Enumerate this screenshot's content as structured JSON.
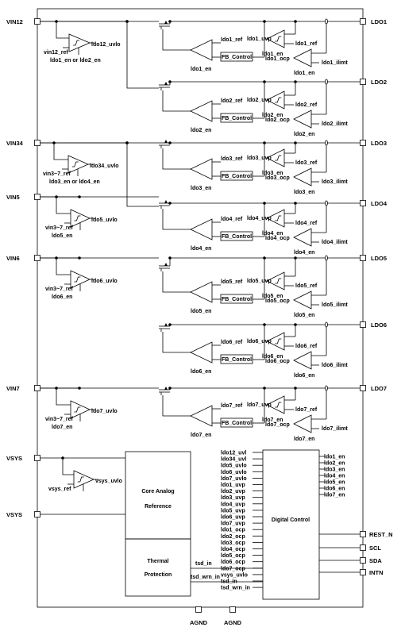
{
  "pins_left": [
    "VIN12",
    "VIN34",
    "VIN5",
    "VIN6",
    "VIN7",
    "VSYS",
    "VSYS"
  ],
  "pins_right": [
    "LDO1",
    "LDO2",
    "LDO3",
    "LDO4",
    "LDO5",
    "LDO6",
    "LDO7"
  ],
  "pins_right_digital": [
    "REST_N",
    "SCL",
    "SDA",
    "INTN"
  ],
  "pins_bottom": [
    "AGND",
    "AGND"
  ],
  "fb_label": "FB_Control",
  "uvlo": [
    {
      "ref": "vin12_ref",
      "out": "ldo12_uvlo",
      "en": "ldo1_en or ldo2_en"
    },
    {
      "ref": "vin3~7_ref",
      "out": "ldo34_uvlo",
      "en": "ldo3_en or ldo4_en"
    },
    {
      "ref": "vin3~7_ref",
      "out": "ldo5_uvlo",
      "en": "ldo5_en"
    },
    {
      "ref": "vin3~7_ref",
      "out": "ldo6_uvlo",
      "en": "ldo6_en"
    },
    {
      "ref": "vin3~7_ref",
      "out": "ldo7_uvlo",
      "en": "ldo7_en"
    },
    {
      "ref": "vsys_ref",
      "out": "vsys_uvlo",
      "en": ""
    }
  ],
  "ldos": [
    {
      "ref": "ldo1_ref",
      "en": "ldo1_en",
      "uvp": "ldo1_uvp",
      "uvp_ref": "ldo1_ref",
      "uvp_en": "ldo1_en",
      "ocp": "ldo1_ocp",
      "ilimit": "ldo1_ilimt",
      "ocp_en": "ldo1_en"
    },
    {
      "ref": "ldo2_ref",
      "en": "ldo2_en",
      "uvp": "ldo2_uvp",
      "uvp_ref": "ldo2_ref",
      "uvp_en": "ldo2_en",
      "ocp": "ldo2_ocp",
      "ilimit": "ldo2_ilimt",
      "ocp_en": "ldo2_en"
    },
    {
      "ref": "ldo3_ref",
      "en": "ldo3_en",
      "uvp": "ldo3_uvp",
      "uvp_ref": "ldo3_ref",
      "uvp_en": "ldo3_en",
      "ocp": "ldo3_ocp",
      "ilimit": "ldo3_ilimt",
      "ocp_en": "ldo3_en"
    },
    {
      "ref": "ldo4_ref",
      "en": "ldo4_en",
      "uvp": "ldo4_uvp",
      "uvp_ref": "ldo4_ref",
      "uvp_en": "ldo4_en",
      "ocp": "ldo4_ocp",
      "ilimit": "ldo4_ilimt",
      "ocp_en": "ldo4_en"
    },
    {
      "ref": "ldo5_ref",
      "en": "ldo5_en",
      "uvp": "ldo5_uvp",
      "uvp_ref": "ldo5_ref",
      "uvp_en": "ldo5_en",
      "ocp": "ldo5_ocp",
      "ilimit": "ldo5_ilimt",
      "ocp_en": "ldo5_en"
    },
    {
      "ref": "ldo6_ref",
      "en": "ldo6_en",
      "uvp": "ldo6_uvp",
      "uvp_ref": "ldo6_ref",
      "uvp_en": "ldo6_en",
      "ocp": "ldo6_ocp",
      "ilimit": "ldo6_ilimt",
      "ocp_en": "ldo6_en"
    },
    {
      "ref": "ldo7_ref",
      "en": "ldo7_en",
      "uvp": "ldo7_uvp",
      "uvp_ref": "ldo7_ref",
      "uvp_en": "ldo7_en",
      "ocp": "ldo7_ocp",
      "ilimit": "ldo7_ilimt",
      "ocp_en": "ldo7_en"
    }
  ],
  "core": {
    "line1": "Core Analog",
    "line2": "Reference"
  },
  "thermal": {
    "line1": "Thermal",
    "line2": "Protection",
    "out1": "tsd_in",
    "out2": "tsd_wrn_in"
  },
  "digital": {
    "title": "Digital Control",
    "inputs": [
      "ldo12_uvl",
      "ldo34_uvl",
      "ldo5_uvlo",
      "ldo6_uvlo",
      "ldo7_uvlo",
      "ldo1_uvp",
      "ldo2_uvp",
      "ldo3_uvp",
      "ldo4_uvp",
      "ldo5_uvp",
      "ldo6_uvp",
      "ldo7_uvp",
      "ldo1_ocp",
      "ldo2_ocp",
      "ldo3_ocp",
      "ldo4_ocp",
      "ldo5_ocp",
      "ldo6_ocp",
      "ldo7_ocp",
      "vsys_uvlo",
      "tsd_in",
      "tsd_wrn_in"
    ],
    "outputs": [
      "ldo1_en",
      "ldo2_en",
      "ldo3_en",
      "ldo4_en",
      "ldo5_en",
      "ldo6_en",
      "ldo7_en"
    ]
  }
}
